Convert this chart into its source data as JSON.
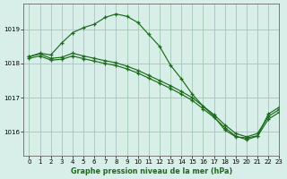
{
  "title": "Graphe pression niveau de la mer (hPa)",
  "background_color": "#d8eee8",
  "grid_color": "#aaccbb",
  "line_color": "#1a6b1a",
  "xlim": [
    -0.5,
    23
  ],
  "ylim": [
    1015.3,
    1019.75
  ],
  "yticks": [
    1016,
    1017,
    1018,
    1019
  ],
  "xticks": [
    0,
    1,
    2,
    3,
    4,
    5,
    6,
    7,
    8,
    9,
    10,
    11,
    12,
    13,
    14,
    15,
    16,
    17,
    18,
    19,
    20,
    21,
    22,
    23
  ],
  "line1": {
    "x": [
      0,
      1,
      2,
      3,
      4,
      5,
      6,
      7,
      8,
      9,
      10,
      11,
      12,
      13,
      14,
      15,
      16,
      17,
      18,
      19,
      20,
      21,
      22,
      23
    ],
    "y": [
      1018.2,
      1018.3,
      1018.25,
      1018.6,
      1018.9,
      1019.05,
      1019.15,
      1019.35,
      1019.45,
      1019.38,
      1019.2,
      1018.85,
      1018.5,
      1017.95,
      1017.55,
      1017.1,
      1016.75,
      1016.45,
      1016.05,
      1015.85,
      1015.82,
      1015.88,
      1016.52,
      1016.72
    ]
  },
  "line2": {
    "x": [
      0,
      1,
      2,
      3,
      4,
      5,
      6,
      7,
      8,
      9,
      10,
      11,
      12,
      13,
      14,
      15,
      16,
      17,
      18,
      19,
      20,
      21,
      22,
      23
    ],
    "y": [
      1018.2,
      1018.28,
      1018.15,
      1018.18,
      1018.3,
      1018.22,
      1018.15,
      1018.08,
      1018.02,
      1017.92,
      1017.8,
      1017.65,
      1017.5,
      1017.35,
      1017.18,
      1017.0,
      1016.75,
      1016.5,
      1016.2,
      1015.95,
      1015.85,
      1015.95,
      1016.45,
      1016.65
    ]
  },
  "line3": {
    "x": [
      0,
      1,
      2,
      3,
      4,
      5,
      6,
      7,
      8,
      9,
      10,
      11,
      12,
      13,
      14,
      15,
      16,
      17,
      18,
      19,
      20,
      21,
      22,
      23
    ],
    "y": [
      1018.15,
      1018.22,
      1018.1,
      1018.12,
      1018.22,
      1018.14,
      1018.07,
      1018.0,
      1017.94,
      1017.84,
      1017.72,
      1017.57,
      1017.42,
      1017.27,
      1017.1,
      1016.92,
      1016.67,
      1016.42,
      1016.12,
      1015.87,
      1015.77,
      1015.87,
      1016.37,
      1016.57
    ]
  }
}
